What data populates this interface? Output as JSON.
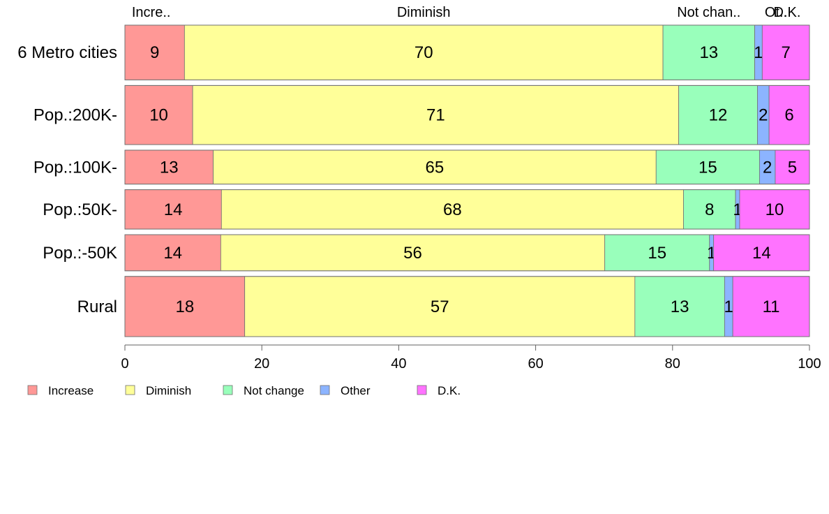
{
  "chart_data": {
    "type": "bar",
    "orientation": "horizontal",
    "stacked": true,
    "categories": [
      "6 Metro cities",
      "Pop.:200K-",
      "Pop.:100K-",
      "Pop.:50K-",
      "Pop.:-50K",
      "Rural"
    ],
    "category_weights": [
      1.0,
      1.08,
      0.62,
      0.72,
      0.66,
      1.1
    ],
    "series": [
      {
        "name": "Increase",
        "color": "#FF9896",
        "values": [
          8.7,
          9.9,
          12.9,
          14.1,
          14.0,
          17.5
        ],
        "labels": [
          "9",
          "10",
          "13",
          "14",
          "14",
          "18"
        ]
      },
      {
        "name": "Diminish",
        "color": "#FFFF99",
        "values": [
          69.9,
          71.0,
          64.7,
          67.5,
          56.1,
          57.0
        ],
        "labels": [
          "70",
          "71",
          "65",
          "68",
          "56",
          "57"
        ]
      },
      {
        "name": "Not change",
        "color": "#99FFBB",
        "values": [
          13.4,
          11.5,
          15.1,
          7.6,
          15.3,
          13.1
        ],
        "labels": [
          "13",
          "12",
          "15",
          "8",
          "15",
          "13"
        ]
      },
      {
        "name": "Other",
        "color": "#8CB4FF",
        "values": [
          1.1,
          1.7,
          2.3,
          0.6,
          0.6,
          1.2
        ],
        "labels": [
          "1",
          "2",
          "2",
          "1",
          "1",
          "1"
        ]
      },
      {
        "name": "D.K.",
        "color": "#FF73FF",
        "values": [
          6.9,
          5.9,
          5.0,
          10.2,
          14.0,
          11.2
        ],
        "labels": [
          "7",
          "6",
          "5",
          "10",
          "14",
          "11"
        ]
      }
    ],
    "top_labels": [
      "Incre..",
      "Diminish",
      "Not chan..",
      "Ot..",
      "D.K."
    ],
    "xticks": [
      "0",
      "20",
      "40",
      "60",
      "80",
      "100"
    ],
    "xlim": [
      0,
      100
    ],
    "legend_position": "bottom-left",
    "grid": false
  }
}
